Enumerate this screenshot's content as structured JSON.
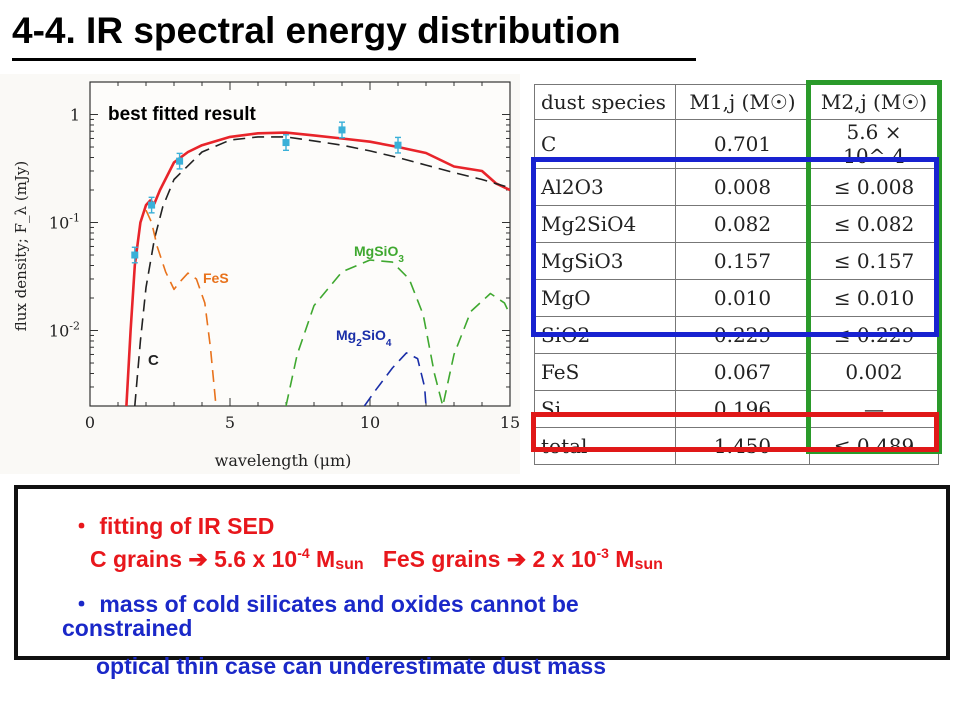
{
  "slide": {
    "title": "4-4. IR spectral energy distribution"
  },
  "chart_data": {
    "type": "line",
    "annotation": "best fitted result",
    "xlabel": "wavelength (μm)",
    "ylabel": "flux density; F_λ (mJy)",
    "x_ticks": [
      "0",
      "5",
      "10",
      "15"
    ],
    "y_ticks": [
      "1",
      "10^-1",
      "10^-2"
    ],
    "xlim": [
      0,
      15
    ],
    "ylim": [
      0.002,
      2
    ],
    "yscale": "log",
    "series": [
      {
        "name": "total",
        "color": "#e8242a",
        "style": "solid",
        "x": [
          1.3,
          1.45,
          1.6,
          1.8,
          2.0,
          2.15,
          2.3,
          2.5,
          3.0,
          3.5,
          4.0,
          5.0,
          6.0,
          7.0,
          8.0,
          9.0,
          10.0,
          11.0,
          12.0,
          13.0,
          14.0,
          14.5,
          15.0
        ],
        "y": [
          0.002,
          0.01,
          0.04,
          0.1,
          0.145,
          0.16,
          0.15,
          0.2,
          0.36,
          0.45,
          0.52,
          0.62,
          0.67,
          0.68,
          0.64,
          0.6,
          0.56,
          0.5,
          0.44,
          0.33,
          0.3,
          0.23,
          0.2
        ]
      },
      {
        "name": "C",
        "color": "#222222",
        "style": "dashed",
        "x": [
          1.6,
          1.8,
          2.0,
          2.3,
          2.6,
          3.0,
          4.0,
          5.0,
          6.0,
          7.0,
          8.0,
          9.0,
          10.0,
          11.0,
          12.0,
          13.0,
          14.0,
          15.0
        ],
        "y": [
          0.002,
          0.008,
          0.025,
          0.07,
          0.14,
          0.25,
          0.45,
          0.58,
          0.62,
          0.62,
          0.57,
          0.52,
          0.46,
          0.4,
          0.34,
          0.29,
          0.25,
          0.21
        ]
      },
      {
        "name": "FeS",
        "color": "#e8721c",
        "style": "dashed",
        "x": [
          2.0,
          2.2,
          2.4,
          2.7,
          3.0,
          3.2,
          3.5,
          3.8,
          4.1,
          4.3,
          4.5
        ],
        "y": [
          0.13,
          0.1,
          0.06,
          0.035,
          0.024,
          0.028,
          0.034,
          0.03,
          0.018,
          0.007,
          0.002
        ]
      },
      {
        "name": "MgSiO3",
        "color": "#3fa830",
        "style": "dashed",
        "x": [
          7.0,
          7.4,
          8.0,
          9.0,
          10.0,
          10.8,
          11.4,
          11.9,
          12.3,
          12.6,
          13.0,
          13.6,
          14.3,
          14.8,
          15.0
        ],
        "y": [
          0.002,
          0.006,
          0.017,
          0.035,
          0.045,
          0.043,
          0.03,
          0.014,
          0.004,
          0.002,
          0.006,
          0.015,
          0.022,
          0.018,
          0.014
        ]
      },
      {
        "name": "Mg2SiO4",
        "color": "#1a2ea8",
        "style": "dashed",
        "x": [
          9.8,
          10.2,
          10.8,
          11.3,
          11.7,
          11.95,
          12.0
        ],
        "y": [
          0.002,
          0.0028,
          0.0045,
          0.0062,
          0.0055,
          0.003,
          0.002
        ]
      }
    ],
    "observed": {
      "color": "#3ab0d8",
      "x": [
        1.6,
        2.2,
        3.2,
        7.0,
        9.0,
        11.0
      ],
      "y": [
        0.05,
        0.145,
        0.37,
        0.55,
        0.72,
        0.52
      ]
    },
    "labels": [
      {
        "text": "FeS",
        "color": "#e8721c"
      },
      {
        "text": "MgSiO3",
        "color": "#3fa830"
      },
      {
        "text": "Mg2SiO4",
        "color": "#1a2ea8"
      },
      {
        "text": "C",
        "color": "#222222"
      }
    ]
  },
  "table": {
    "headers": [
      "dust species",
      "M1,j (M☉)",
      "M2,j (M☉)"
    ],
    "rows": [
      {
        "species": "C",
        "m1": "0.701",
        "m2": "5.6 × 10^-4"
      },
      {
        "species": "Al2O3",
        "m1": "0.008",
        "m2": "≤ 0.008"
      },
      {
        "species": "Mg2SiO4",
        "m1": "0.082",
        "m2": "≤ 0.082"
      },
      {
        "species": "MgSiO3",
        "m1": "0.157",
        "m2": "≤ 0.157"
      },
      {
        "species": "MgO",
        "m1": "0.010",
        "m2": "≤ 0.010"
      },
      {
        "species": "SiO2",
        "m1": "0.229",
        "m2": "≤ 0.229"
      },
      {
        "species": "FeS",
        "m1": "0.067",
        "m2": "0.002"
      },
      {
        "species": "Si",
        "m1": "0.196",
        "m2": "—"
      },
      {
        "species": "total",
        "m1": "1.450",
        "m2": "≤ 0.489"
      }
    ],
    "highlight_colors": {
      "green": "#2a9a2a",
      "blue": "#1822d0",
      "red": "#e01818"
    }
  },
  "notes": {
    "bullet1": "・ fitting of IR SED",
    "c_grains": "C grains ➔ 5.6 x 10",
    "c_exp": "-4",
    "m_sym": "M",
    "sun": "sun",
    "fes_grains": "FeS grains ➔ 2 x 10",
    "fes_exp": "-3",
    "bullet2_line1": "・ mass of cold silicates and oxides cannot be",
    "bullet2_line2": "constrained",
    "bullet3": "optical thin case can underestimate dust mass"
  }
}
